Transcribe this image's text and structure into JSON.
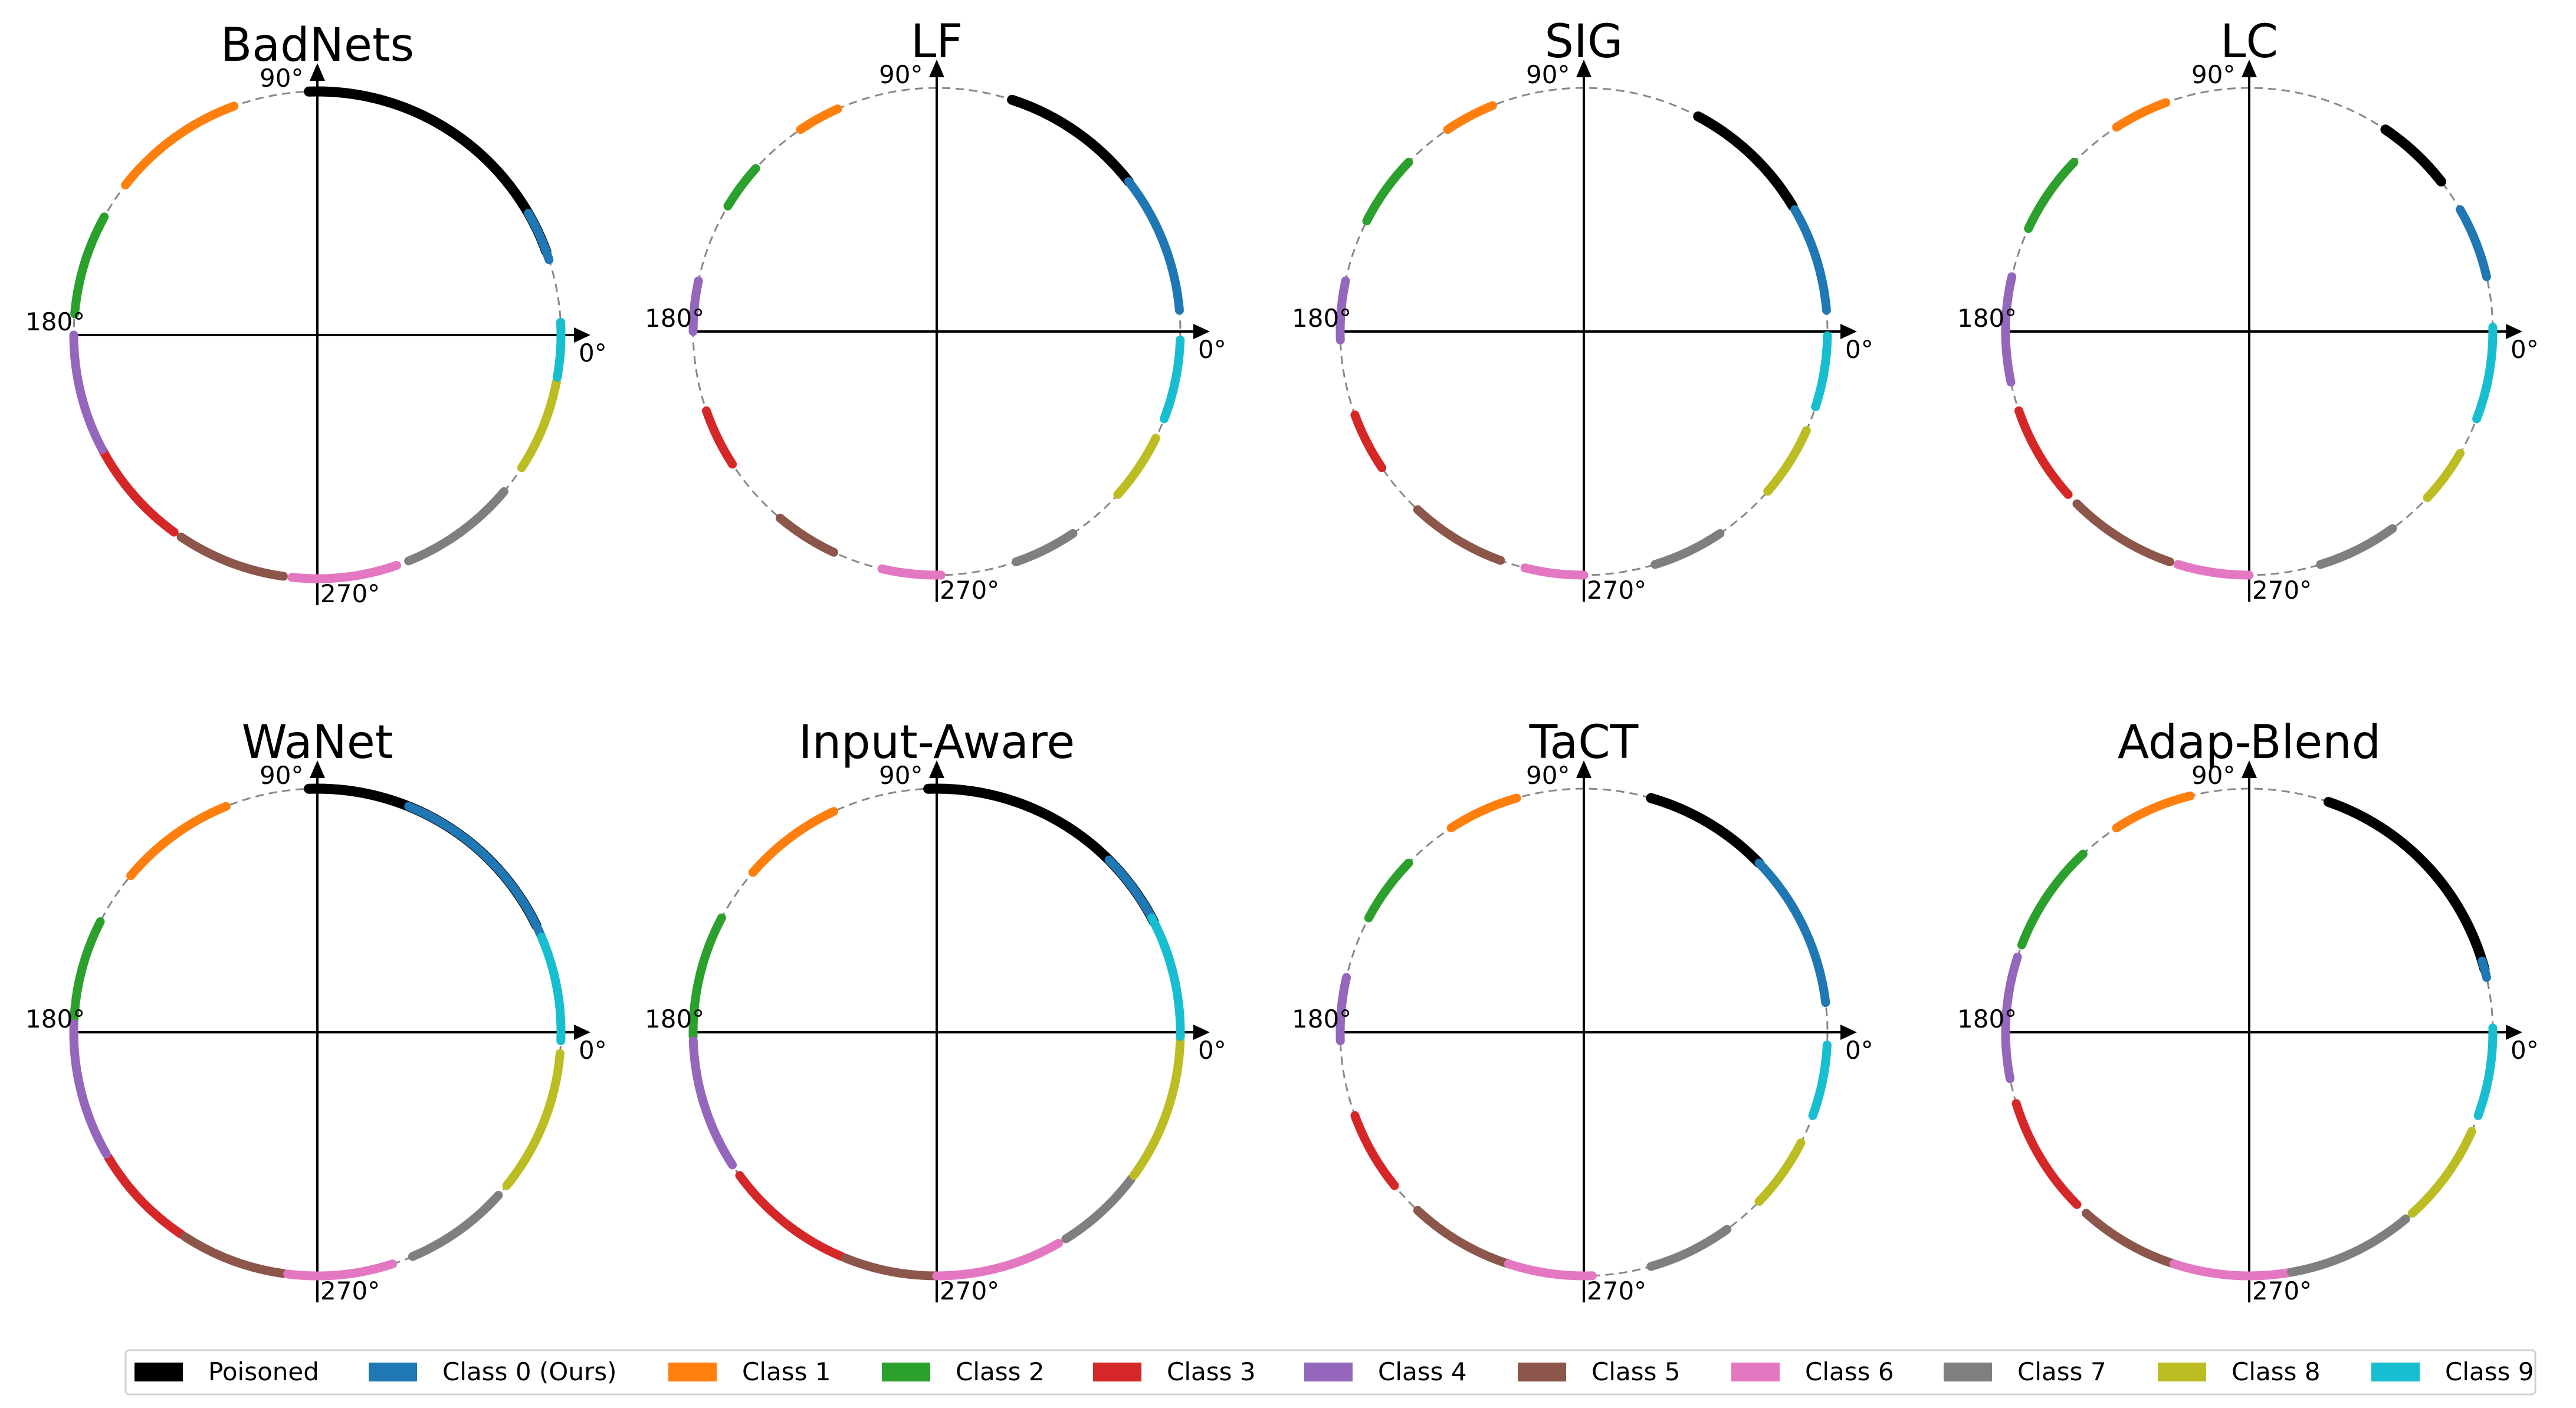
{
  "chart_data": [
    {
      "type": "scatter",
      "title": "BadNets",
      "angle_labels": [
        "90°",
        "180°",
        "270°",
        "0°"
      ],
      "arcs": [
        {
          "series": "Poisoned",
          "start_deg": 20,
          "end_deg": 92
        },
        {
          "series": "Class 0 (Ours)",
          "start_deg": 18,
          "end_deg": 30
        },
        {
          "series": "Class 1",
          "start_deg": 110,
          "end_deg": 142
        },
        {
          "series": "Class 2",
          "start_deg": 151,
          "end_deg": 175
        },
        {
          "series": "Class 3",
          "start_deg": 208,
          "end_deg": 234
        },
        {
          "series": "Class 4",
          "start_deg": 180,
          "end_deg": 208
        },
        {
          "series": "Class 5",
          "start_deg": 236,
          "end_deg": 262
        },
        {
          "series": "Class 6",
          "start_deg": 264,
          "end_deg": 289
        },
        {
          "series": "Class 7",
          "start_deg": 292,
          "end_deg": 320
        },
        {
          "series": "Class 8",
          "start_deg": 327,
          "end_deg": 349
        },
        {
          "series": "Class 9",
          "start_deg": 350,
          "end_deg": 363
        }
      ]
    },
    {
      "type": "scatter",
      "title": "LF",
      "angle_labels": [
        "90°",
        "180°",
        "270°",
        "0°"
      ],
      "arcs": [
        {
          "series": "Poisoned",
          "start_deg": 38,
          "end_deg": 72
        },
        {
          "series": "Class 0 (Ours)",
          "start_deg": 5,
          "end_deg": 38
        },
        {
          "series": "Class 1",
          "start_deg": 114,
          "end_deg": 124
        },
        {
          "series": "Class 2",
          "start_deg": 138,
          "end_deg": 149
        },
        {
          "series": "Class 3",
          "start_deg": 199,
          "end_deg": 213
        },
        {
          "series": "Class 4",
          "start_deg": 168,
          "end_deg": 180
        },
        {
          "series": "Class 5",
          "start_deg": 230,
          "end_deg": 245
        },
        {
          "series": "Class 6",
          "start_deg": 257,
          "end_deg": 271
        },
        {
          "series": "Class 7",
          "start_deg": 289,
          "end_deg": 304
        },
        {
          "series": "Class 8",
          "start_deg": 318,
          "end_deg": 334
        },
        {
          "series": "Class 9",
          "start_deg": 339,
          "end_deg": 358
        }
      ]
    },
    {
      "type": "scatter",
      "title": "SIG",
      "angle_labels": [
        "90°",
        "180°",
        "270°",
        "0°"
      ],
      "arcs": [
        {
          "series": "Poisoned",
          "start_deg": 31,
          "end_deg": 62
        },
        {
          "series": "Class 0 (Ours)",
          "start_deg": 5,
          "end_deg": 30
        },
        {
          "series": "Class 1",
          "start_deg": 112,
          "end_deg": 124
        },
        {
          "series": "Class 2",
          "start_deg": 136,
          "end_deg": 153
        },
        {
          "series": "Class 3",
          "start_deg": 200,
          "end_deg": 214
        },
        {
          "series": "Class 4",
          "start_deg": 168,
          "end_deg": 182
        },
        {
          "series": "Class 5",
          "start_deg": 227,
          "end_deg": 250
        },
        {
          "series": "Class 6",
          "start_deg": 256,
          "end_deg": 270
        },
        {
          "series": "Class 7",
          "start_deg": 287,
          "end_deg": 304
        },
        {
          "series": "Class 8",
          "start_deg": 319,
          "end_deg": 336
        },
        {
          "series": "Class 9",
          "start_deg": 342,
          "end_deg": 359
        }
      ]
    },
    {
      "type": "scatter",
      "title": "LC",
      "angle_labels": [
        "90°",
        "180°",
        "270°",
        "0°"
      ],
      "arcs": [
        {
          "series": "Poisoned",
          "start_deg": 38,
          "end_deg": 56
        },
        {
          "series": "Class 0 (Ours)",
          "start_deg": 13,
          "end_deg": 30
        },
        {
          "series": "Class 1",
          "start_deg": 110,
          "end_deg": 123
        },
        {
          "series": "Class 2",
          "start_deg": 136,
          "end_deg": 155
        },
        {
          "series": "Class 3",
          "start_deg": 199,
          "end_deg": 222
        },
        {
          "series": "Class 4",
          "start_deg": 167,
          "end_deg": 192
        },
        {
          "series": "Class 5",
          "start_deg": 225,
          "end_deg": 251
        },
        {
          "series": "Class 6",
          "start_deg": 253,
          "end_deg": 270
        },
        {
          "series": "Class 7",
          "start_deg": 287,
          "end_deg": 306
        },
        {
          "series": "Class 8",
          "start_deg": 317,
          "end_deg": 330
        },
        {
          "series": "Class 9",
          "start_deg": 339,
          "end_deg": 361
        }
      ]
    },
    {
      "type": "scatter",
      "title": "WaNet",
      "angle_labels": [
        "90°",
        "180°",
        "270°",
        "0°"
      ],
      "arcs": [
        {
          "series": "Poisoned",
          "start_deg": 26,
          "end_deg": 92
        },
        {
          "series": "Class 0 (Ours)",
          "start_deg": 21,
          "end_deg": 68
        },
        {
          "series": "Class 1",
          "start_deg": 112,
          "end_deg": 140
        },
        {
          "series": "Class 2",
          "start_deg": 153,
          "end_deg": 177
        },
        {
          "series": "Class 3",
          "start_deg": 211,
          "end_deg": 236
        },
        {
          "series": "Class 4",
          "start_deg": 178,
          "end_deg": 210
        },
        {
          "series": "Class 5",
          "start_deg": 237,
          "end_deg": 262
        },
        {
          "series": "Class 6",
          "start_deg": 263,
          "end_deg": 288
        },
        {
          "series": "Class 7",
          "start_deg": 293,
          "end_deg": 318
        },
        {
          "series": "Class 8",
          "start_deg": 321,
          "end_deg": 355
        },
        {
          "series": "Class 9",
          "start_deg": 358,
          "end_deg": 383
        }
      ]
    },
    {
      "type": "scatter",
      "title": "Input-Aware",
      "angle_labels": [
        "90°",
        "180°",
        "270°",
        "0°"
      ],
      "arcs": [
        {
          "series": "Poisoned",
          "start_deg": 27,
          "end_deg": 92
        },
        {
          "series": "Class 0 (Ours)",
          "start_deg": 14,
          "end_deg": 45
        },
        {
          "series": "Class 1",
          "start_deg": 115,
          "end_deg": 139
        },
        {
          "series": "Class 2",
          "start_deg": 152,
          "end_deg": 181
        },
        {
          "series": "Class 3",
          "start_deg": 216,
          "end_deg": 247
        },
        {
          "series": "Class 4",
          "start_deg": 182,
          "end_deg": 213
        },
        {
          "series": "Class 5",
          "start_deg": 248,
          "end_deg": 271
        },
        {
          "series": "Class 6",
          "start_deg": 270,
          "end_deg": 300
        },
        {
          "series": "Class 7",
          "start_deg": 302,
          "end_deg": 323
        },
        {
          "series": "Class 8",
          "start_deg": 324,
          "end_deg": 359
        },
        {
          "series": "Class 9",
          "start_deg": 359,
          "end_deg": 388
        }
      ]
    },
    {
      "type": "scatter",
      "title": "TaCT",
      "angle_labels": [
        "90°",
        "180°",
        "270°",
        "0°"
      ],
      "arcs": [
        {
          "series": "Poisoned",
          "start_deg": 44,
          "end_deg": 74
        },
        {
          "series": "Class 0 (Ours)",
          "start_deg": 7,
          "end_deg": 44
        },
        {
          "series": "Class 1",
          "start_deg": 106,
          "end_deg": 123
        },
        {
          "series": "Class 2",
          "start_deg": 136,
          "end_deg": 152
        },
        {
          "series": "Class 3",
          "start_deg": 200,
          "end_deg": 219
        },
        {
          "series": "Class 4",
          "start_deg": 167,
          "end_deg": 182
        },
        {
          "series": "Class 5",
          "start_deg": 227,
          "end_deg": 252
        },
        {
          "series": "Class 6",
          "start_deg": 252,
          "end_deg": 272
        },
        {
          "series": "Class 7",
          "start_deg": 286,
          "end_deg": 306
        },
        {
          "series": "Class 8",
          "start_deg": 316,
          "end_deg": 333
        },
        {
          "series": "Class 9",
          "start_deg": 340,
          "end_deg": 357
        }
      ]
    },
    {
      "type": "scatter",
      "title": "Adap-Blend",
      "angle_labels": [
        "90°",
        "180°",
        "270°",
        "0°"
      ],
      "arcs": [
        {
          "series": "Poisoned",
          "start_deg": 15,
          "end_deg": 71
        },
        {
          "series": "Class 0 (Ours)",
          "start_deg": 13,
          "end_deg": 17
        },
        {
          "series": "Class 1",
          "start_deg": 104,
          "end_deg": 123
        },
        {
          "series": "Class 2",
          "start_deg": 133,
          "end_deg": 159
        },
        {
          "series": "Class 3",
          "start_deg": 197,
          "end_deg": 225
        },
        {
          "series": "Class 4",
          "start_deg": 162,
          "end_deg": 191
        },
        {
          "series": "Class 5",
          "start_deg": 228,
          "end_deg": 252
        },
        {
          "series": "Class 6",
          "start_deg": 252,
          "end_deg": 280
        },
        {
          "series": "Class 7",
          "start_deg": 280,
          "end_deg": 310
        },
        {
          "series": "Class 8",
          "start_deg": 312,
          "end_deg": 336
        },
        {
          "series": "Class 9",
          "start_deg": 340,
          "end_deg": 361
        }
      ]
    }
  ],
  "legend": {
    "entries": [
      {
        "label": "Poisoned",
        "color": "#000000"
      },
      {
        "label": "Class 0 (Ours)",
        "color": "#1f77b4"
      },
      {
        "label": "Class 1",
        "color": "#ff7f0e"
      },
      {
        "label": "Class 2",
        "color": "#2ca02c"
      },
      {
        "label": "Class 3",
        "color": "#d62728"
      },
      {
        "label": "Class 4",
        "color": "#9467bd"
      },
      {
        "label": "Class 5",
        "color": "#8c564b"
      },
      {
        "label": "Class 6",
        "color": "#e377c2"
      },
      {
        "label": "Class 7",
        "color": "#7f7f7f"
      },
      {
        "label": "Class 8",
        "color": "#bcbd22"
      },
      {
        "label": "Class 9",
        "color": "#17becf"
      }
    ],
    "placement": "bottom"
  },
  "circle_style": {
    "color": "#888888",
    "dashed": true
  }
}
